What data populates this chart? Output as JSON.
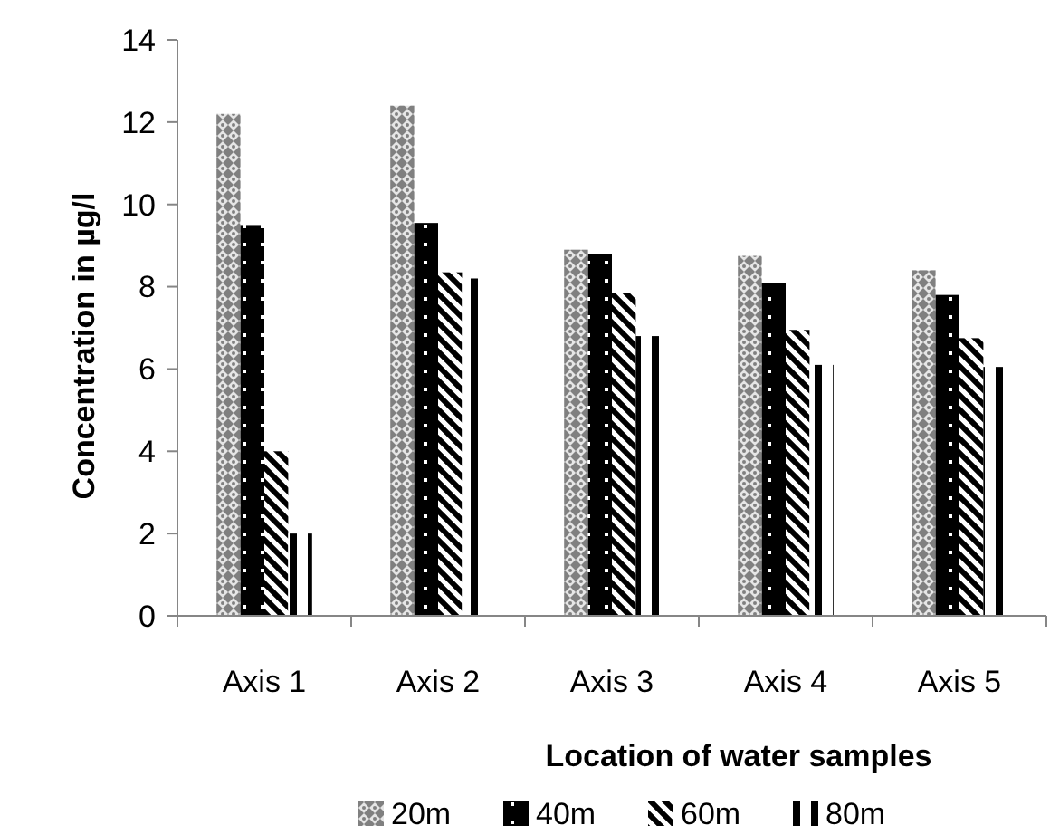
{
  "chart_data": {
    "type": "bar",
    "xlabel": "Location of water samples",
    "ylabel": "Concentration in µg/l",
    "categories": [
      "Axis 1",
      "Axis 2",
      "Axis 3",
      "Axis 4",
      "Axis 5"
    ],
    "series": [
      {
        "name": "20m",
        "color": "#808080",
        "values": [
          12.2,
          12.4,
          8.9,
          8.75,
          8.4
        ]
      },
      {
        "name": "40m",
        "color": "#000000",
        "values": [
          9.5,
          9.55,
          8.8,
          8.1,
          7.8
        ]
      },
      {
        "name": "60m",
        "color": "#000000",
        "values": [
          4,
          8.35,
          7.85,
          6.95,
          6.75
        ]
      },
      {
        "name": "80m",
        "color": "#000000",
        "values": [
          2,
          8.2,
          6.8,
          6.1,
          6.05
        ]
      }
    ],
    "ylim": [
      0,
      14
    ],
    "yticks": [
      0,
      2,
      4,
      6,
      8,
      10,
      12,
      14
    ],
    "legend": "bottom"
  }
}
